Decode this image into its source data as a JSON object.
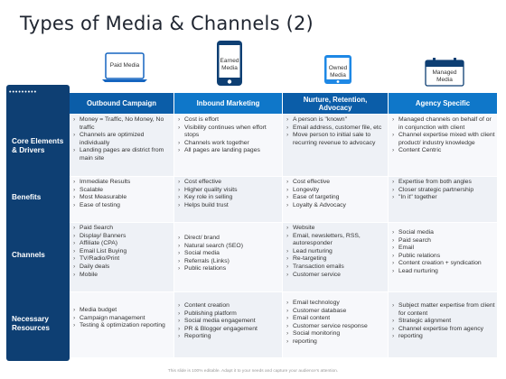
{
  "title": "Types of Media & Channels (2)",
  "icons": [
    {
      "label": "Paid Media",
      "icon": "laptop-icon"
    },
    {
      "label": "Earned Media",
      "icon": "smartphone-icon"
    },
    {
      "label": "Owned Media",
      "icon": "tablet-icon"
    },
    {
      "label": "Managed Media",
      "icon": "calendar-icon"
    }
  ],
  "columns": [
    "Outbound Campaign",
    "Inbound Marketing",
    "Nurture, Retention, Advocacy",
    "Agency Specific"
  ],
  "rows": [
    {
      "label": "Core Elements & Drivers",
      "cells": [
        [
          "Money = Traffic, No Money, No traffic",
          "Channels are optimized individually",
          "Landing pages are district from main site"
        ],
        [
          "Cost is effort",
          "Visibility continues when effort stops",
          "Channels work together",
          "All pages are landing pages"
        ],
        [
          "A person is \"known\"",
          "Email address, customer file, etc",
          "Move person to initial sale to recurring revenue to advocacy"
        ],
        [
          "Managed channels on behalf of or in conjunction with client",
          "Channel expertise mixed with client product/ industry knowledge",
          "Content Centric"
        ]
      ]
    },
    {
      "label": "Benefits",
      "cells": [
        [
          "Immediate Results",
          "Scalable",
          "Most Measurable",
          "Ease of testing"
        ],
        [
          "Cost effective",
          "Higher quality visits",
          "Key role in selling",
          "Helps build trust"
        ],
        [
          "Cost effective",
          "Longevity",
          "Ease of targeting",
          "Loyalty & Advocacy"
        ],
        [
          "Expertise from both angles",
          "Closer strategic partnership",
          "\"In it\" together"
        ]
      ]
    },
    {
      "label": "Channels",
      "cells": [
        [
          "Paid Search",
          "Display/ Banners",
          "Affiliate (CPA)",
          "Email List Buying",
          "TV/Radio/Print",
          "Daily deals",
          "Mobile"
        ],
        [
          "Direct/ brand",
          "Natural search (SEO)",
          "Social media",
          "Referrals (Links)",
          "Public relations"
        ],
        [
          "Website",
          "Email, newsletters, RSS, autoresponder",
          "Lead nurturing",
          "Re-targeting",
          "Transaction emails",
          "Customer service"
        ],
        [
          "Social media",
          "Paid search",
          "Email",
          "Public relations",
          "Content creation + syndication",
          "Lead nurturing"
        ]
      ]
    },
    {
      "label": "Necessary Resources",
      "cells": [
        [
          "Media budget",
          "Campaign management",
          "Testing & optimization reporting"
        ],
        [
          "Content creation",
          "Publishing platform",
          "Social media engagement",
          "PR & Blogger engagement",
          "Reporting"
        ],
        [
          "Email technology",
          "Customer database",
          "Email content",
          "Customer service response",
          "Social monitoring",
          "reporting"
        ],
        [
          "Subject matter expertise from client for content",
          "Strategic alignment",
          "Channel expertise from agency",
          "reporting"
        ]
      ]
    }
  ],
  "footer": "This slide is 100% editable. Adapt it to your needs and capture your audience's attention."
}
